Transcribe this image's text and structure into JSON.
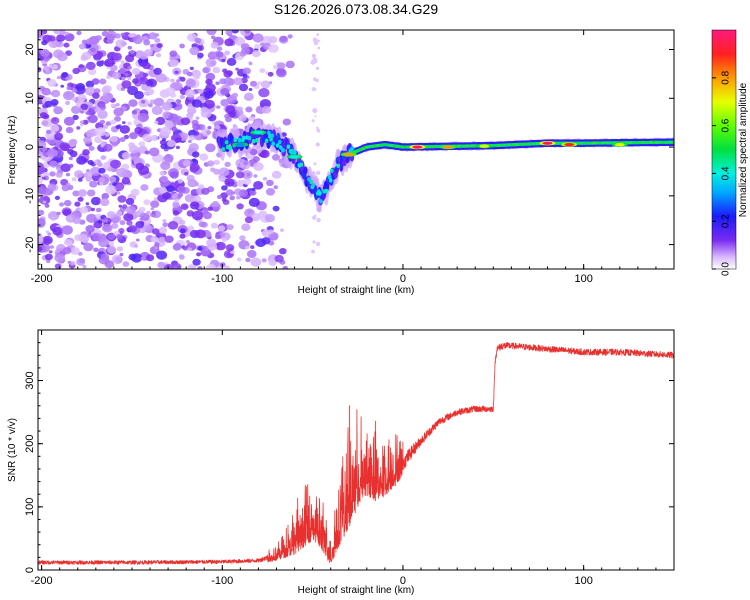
{
  "title": "S126.2026.073.08.34.G29",
  "colors": {
    "snr_line": "#e8312e",
    "spectrogram_purple": "#7b2cf0",
    "frame": "#000000"
  },
  "chart_data": [
    {
      "type": "heatmap",
      "panel": "top",
      "title": "S126.2026.073.08.34.G29",
      "xlabel": "Height of straight line (km)",
      "ylabel": "Frequency (Hz)",
      "xlim": [
        -202,
        150
      ],
      "ylim": [
        -25,
        24
      ],
      "xticks": [
        -200,
        -100,
        0,
        100
      ],
      "xtick_labels": [
        "-200",
        "-100",
        "0",
        "100"
      ],
      "yticks": [
        -20,
        -10,
        0,
        10,
        20
      ],
      "ytick_labels": [
        "-20",
        "-10",
        "0",
        "10",
        "20"
      ],
      "colorbar": {
        "label": "Normalized spectral amplitude",
        "range": [
          0,
          1
        ],
        "ticks": [
          0.0,
          0.2,
          0.4,
          0.6,
          0.8
        ],
        "tick_labels": [
          "0.0",
          "0.2",
          "0.4",
          "0.6",
          "0.8"
        ]
      },
      "noise_region": {
        "x_range": [
          -202,
          -80
        ],
        "y_range": [
          -25,
          24
        ]
      },
      "ridge": [
        {
          "x": -100,
          "y": 0.5
        },
        {
          "x": -90,
          "y": 1.0
        },
        {
          "x": -80,
          "y": 2.5
        },
        {
          "x": -70,
          "y": 1.5
        },
        {
          "x": -60,
          "y": -2.0
        },
        {
          "x": -50,
          "y": -8.0
        },
        {
          "x": -45,
          "y": -11.0
        },
        {
          "x": -40,
          "y": -6.0
        },
        {
          "x": -35,
          "y": -3.0
        },
        {
          "x": -30,
          "y": -1.5
        },
        {
          "x": -20,
          "y": 0.0
        },
        {
          "x": -10,
          "y": 0.5
        },
        {
          "x": 0,
          "y": 0.0
        },
        {
          "x": 50,
          "y": 0.3
        },
        {
          "x": 80,
          "y": 0.8
        },
        {
          "x": 100,
          "y": 0.8
        },
        {
          "x": 150,
          "y": 1.0
        }
      ],
      "hotspots": [
        {
          "x": 8,
          "y": 0.0,
          "value": 0.95
        },
        {
          "x": 25,
          "y": 0.0,
          "value": 0.8
        },
        {
          "x": 45,
          "y": 0.2,
          "value": 0.7
        },
        {
          "x": 80,
          "y": 0.8,
          "value": 0.95
        },
        {
          "x": 92,
          "y": 0.5,
          "value": 0.9
        },
        {
          "x": 120,
          "y": 0.5,
          "value": 0.7
        },
        {
          "x": -30,
          "y": -1.5,
          "value": 0.8
        },
        {
          "x": -60,
          "y": -2.0,
          "value": 0.4
        },
        {
          "x": -80,
          "y": 3.0,
          "value": 0.4
        },
        {
          "x": -90,
          "y": 0.5,
          "value": 0.3
        }
      ]
    },
    {
      "type": "line",
      "panel": "bottom",
      "xlabel": "Height of straight line (km)",
      "ylabel": "SNR (10 * v/v)",
      "xlim": [
        -202,
        150
      ],
      "ylim": [
        0,
        380
      ],
      "xticks": [
        -200,
        -100,
        0,
        100
      ],
      "xtick_labels": [
        "-200",
        "-100",
        "0",
        "100"
      ],
      "yticks": [
        0,
        100,
        200,
        300
      ],
      "ytick_labels": [
        "0",
        "100",
        "200",
        "300"
      ],
      "series": [
        {
          "name": "SNR",
          "trend_x": [
            -202,
            -150,
            -100,
            -80,
            -70,
            -60,
            -55,
            -50,
            -45,
            -40,
            -35,
            -30,
            -25,
            -20,
            -15,
            -10,
            -5,
            0,
            10,
            20,
            30,
            40,
            50,
            51,
            52,
            55,
            60,
            80,
            100,
            120,
            150
          ],
          "trend_y": [
            12,
            12,
            13,
            15,
            25,
            50,
            70,
            80,
            60,
            25,
            90,
            125,
            150,
            165,
            150,
            150,
            160,
            170,
            205,
            235,
            250,
            255,
            255,
            330,
            350,
            355,
            355,
            350,
            345,
            345,
            340
          ],
          "noise_amplitude": [
            6,
            6,
            6,
            6,
            12,
            30,
            40,
            40,
            35,
            20,
            60,
            70,
            60,
            55,
            50,
            40,
            35,
            25,
            15,
            12,
            10,
            10,
            10,
            10,
            12,
            12,
            10,
            10,
            10,
            10,
            10
          ]
        }
      ]
    }
  ]
}
